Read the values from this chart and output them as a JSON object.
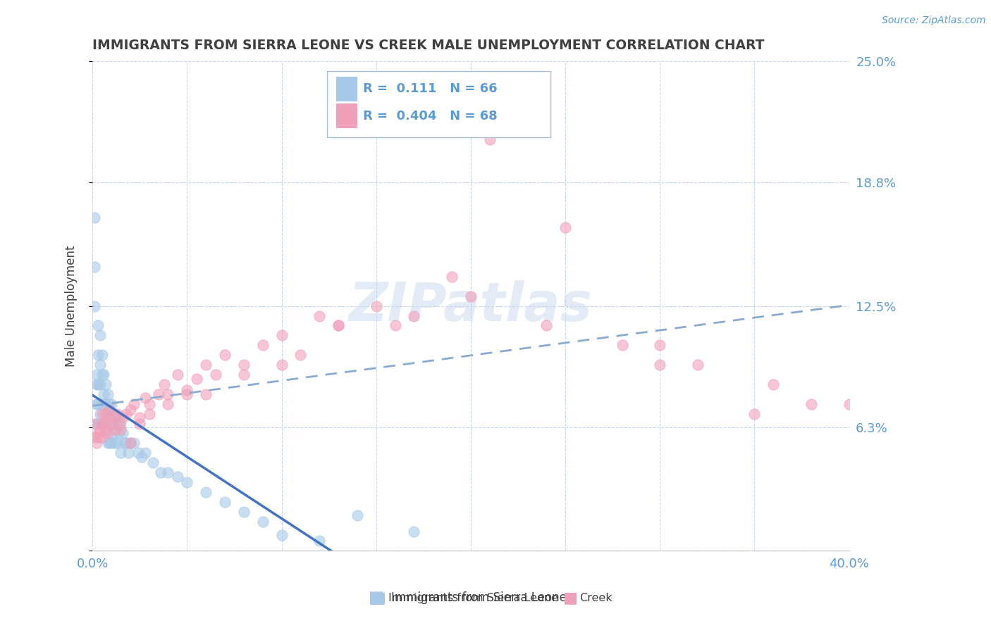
{
  "title": "IMMIGRANTS FROM SIERRA LEONE VS CREEK MALE UNEMPLOYMENT CORRELATION CHART",
  "source": "Source: ZipAtlas.com",
  "ylabel": "Male Unemployment",
  "xlim": [
    0.0,
    0.4
  ],
  "ylim": [
    0.0,
    0.25
  ],
  "yticks": [
    0.0,
    0.063,
    0.125,
    0.188,
    0.25
  ],
  "ytick_labels": [
    "",
    "6.3%",
    "12.5%",
    "18.8%",
    "25.0%"
  ],
  "color_blue": "#A8C8E8",
  "color_pink": "#F0A0B8",
  "color_blue_line": "#4472C4",
  "color_pink_line": "#E06080",
  "color_dashed": "#8AAAD0",
  "background": "#FFFFFF",
  "grid_color": "#C8D8EC",
  "label_color": "#5B9BD5",
  "title_color": "#404040",
  "sl_r": 0.111,
  "sl_n": 66,
  "cr_r": 0.404,
  "cr_n": 68,
  "sierra_leone_x": [
    0.001,
    0.001,
    0.001,
    0.002,
    0.002,
    0.002,
    0.002,
    0.003,
    0.003,
    0.003,
    0.003,
    0.003,
    0.004,
    0.004,
    0.004,
    0.004,
    0.005,
    0.005,
    0.005,
    0.005,
    0.006,
    0.006,
    0.006,
    0.007,
    0.007,
    0.007,
    0.008,
    0.008,
    0.008,
    0.009,
    0.009,
    0.009,
    0.01,
    0.01,
    0.01,
    0.011,
    0.011,
    0.012,
    0.012,
    0.013,
    0.013,
    0.014,
    0.015,
    0.015,
    0.016,
    0.017,
    0.018,
    0.019,
    0.02,
    0.022,
    0.024,
    0.026,
    0.028,
    0.032,
    0.036,
    0.04,
    0.045,
    0.05,
    0.06,
    0.07,
    0.08,
    0.09,
    0.1,
    0.12,
    0.14,
    0.17
  ],
  "sierra_leone_y": [
    0.17,
    0.145,
    0.125,
    0.09,
    0.085,
    0.075,
    0.065,
    0.115,
    0.1,
    0.085,
    0.075,
    0.065,
    0.11,
    0.095,
    0.085,
    0.07,
    0.1,
    0.09,
    0.075,
    0.065,
    0.09,
    0.08,
    0.065,
    0.085,
    0.075,
    0.06,
    0.08,
    0.07,
    0.055,
    0.075,
    0.065,
    0.055,
    0.075,
    0.065,
    0.055,
    0.07,
    0.06,
    0.065,
    0.055,
    0.068,
    0.055,
    0.06,
    0.065,
    0.05,
    0.06,
    0.055,
    0.055,
    0.05,
    0.055,
    0.055,
    0.05,
    0.048,
    0.05,
    0.045,
    0.04,
    0.04,
    0.038,
    0.035,
    0.03,
    0.025,
    0.02,
    0.015,
    0.008,
    0.005,
    0.018,
    0.01
  ],
  "creek_x": [
    0.001,
    0.002,
    0.003,
    0.004,
    0.005,
    0.005,
    0.006,
    0.007,
    0.008,
    0.009,
    0.01,
    0.012,
    0.013,
    0.014,
    0.016,
    0.018,
    0.02,
    0.022,
    0.025,
    0.028,
    0.03,
    0.035,
    0.038,
    0.04,
    0.045,
    0.05,
    0.055,
    0.06,
    0.065,
    0.07,
    0.08,
    0.09,
    0.1,
    0.11,
    0.12,
    0.13,
    0.15,
    0.17,
    0.19,
    0.21,
    0.25,
    0.28,
    0.3,
    0.32,
    0.35,
    0.38,
    0.001,
    0.003,
    0.005,
    0.007,
    0.009,
    0.012,
    0.015,
    0.02,
    0.025,
    0.03,
    0.04,
    0.05,
    0.06,
    0.08,
    0.1,
    0.13,
    0.16,
    0.2,
    0.24,
    0.3,
    0.36,
    0.4
  ],
  "creek_y": [
    0.065,
    0.055,
    0.06,
    0.062,
    0.058,
    0.07,
    0.065,
    0.07,
    0.06,
    0.068,
    0.065,
    0.062,
    0.07,
    0.065,
    0.068,
    0.07,
    0.072,
    0.075,
    0.065,
    0.078,
    0.075,
    0.08,
    0.085,
    0.08,
    0.09,
    0.082,
    0.088,
    0.095,
    0.09,
    0.1,
    0.095,
    0.105,
    0.11,
    0.1,
    0.12,
    0.115,
    0.125,
    0.12,
    0.14,
    0.21,
    0.165,
    0.105,
    0.105,
    0.095,
    0.07,
    0.075,
    0.058,
    0.058,
    0.065,
    0.062,
    0.072,
    0.068,
    0.062,
    0.055,
    0.068,
    0.07,
    0.075,
    0.08,
    0.08,
    0.09,
    0.095,
    0.115,
    0.115,
    0.13,
    0.115,
    0.095,
    0.085,
    0.075
  ]
}
